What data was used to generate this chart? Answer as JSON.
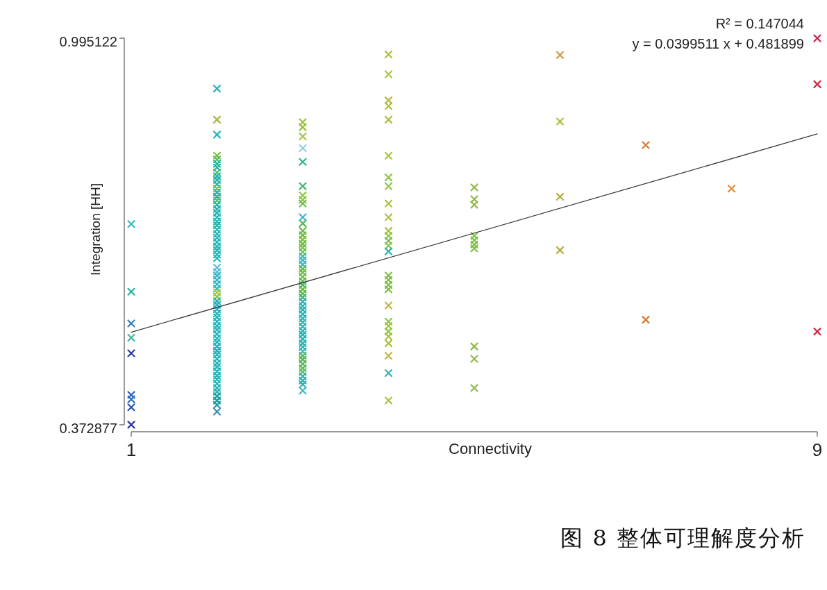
{
  "chart_data": {
    "type": "scatter",
    "xlabel": "Connectivity",
    "ylabel": "Integration [HH]",
    "annotations": [
      "R² = 0.147044",
      "y = 0.0399511 x + 0.481899",
      "图 8 整体可理解度分析"
    ],
    "xlim": [
      1,
      9
    ],
    "xticks": [
      1,
      9
    ],
    "ylim": [
      0.372877,
      0.995122
    ],
    "yticks": [
      0.372877,
      0.995122
    ],
    "marker": "cross",
    "series": [
      {
        "x": [
          1,
          1,
          1,
          1,
          1,
          1,
          1,
          1,
          1,
          2,
          2,
          2,
          2,
          2,
          2,
          2,
          2,
          2,
          2,
          2,
          2,
          2,
          2,
          2,
          2,
          2,
          2,
          2,
          2,
          2,
          2,
          2,
          2,
          2,
          2,
          2,
          2,
          2,
          2,
          2,
          2,
          2,
          2,
          2,
          2,
          2,
          2,
          2,
          2,
          2,
          2,
          2,
          2,
          2,
          2,
          2,
          2,
          2,
          2,
          2,
          2,
          2,
          2,
          2,
          2,
          2,
          2,
          2,
          2,
          2,
          2,
          2,
          2,
          3,
          3,
          3,
          3,
          3,
          3,
          3,
          3,
          3,
          3,
          3,
          3,
          3,
          3,
          3,
          3,
          3,
          3,
          3,
          3,
          3,
          3,
          3,
          3,
          3,
          3,
          3,
          3,
          3,
          3,
          3,
          3,
          3,
          3,
          3,
          3,
          3,
          3,
          3,
          3,
          3,
          3,
          3,
          3,
          3,
          3,
          3,
          3,
          3,
          3,
          4,
          4,
          4,
          4,
          4,
          4,
          4,
          4,
          4,
          4,
          4,
          4,
          4,
          4,
          4,
          4,
          4,
          4,
          4,
          4,
          4,
          4,
          4,
          4,
          4,
          4,
          4,
          4,
          5,
          5,
          5,
          5,
          5,
          5,
          5,
          5,
          5,
          5,
          6,
          6,
          6,
          6,
          7,
          7,
          8,
          9,
          9,
          9
        ],
        "values": [
          0.696,
          0.587,
          0.536,
          0.513,
          0.488,
          0.421,
          0.414,
          0.401,
          0.373,
          0.914,
          0.864,
          0.84,
          0.806,
          0.8,
          0.793,
          0.787,
          0.779,
          0.773,
          0.767,
          0.76,
          0.753,
          0.747,
          0.74,
          0.734,
          0.727,
          0.72,
          0.714,
          0.707,
          0.7,
          0.694,
          0.687,
          0.68,
          0.674,
          0.667,
          0.66,
          0.654,
          0.647,
          0.641,
          0.626,
          0.619,
          0.613,
          0.606,
          0.599,
          0.592,
          0.586,
          0.579,
          0.572,
          0.566,
          0.559,
          0.552,
          0.546,
          0.539,
          0.532,
          0.526,
          0.519,
          0.512,
          0.506,
          0.499,
          0.492,
          0.486,
          0.479,
          0.472,
          0.466,
          0.459,
          0.452,
          0.446,
          0.439,
          0.432,
          0.426,
          0.419,
          0.412,
          0.405,
          0.394,
          0.86,
          0.852,
          0.837,
          0.818,
          0.796,
          0.757,
          0.742,
          0.735,
          0.729,
          0.707,
          0.697,
          0.685,
          0.678,
          0.671,
          0.664,
          0.658,
          0.651,
          0.644,
          0.638,
          0.631,
          0.624,
          0.618,
          0.611,
          0.604,
          0.598,
          0.591,
          0.584,
          0.578,
          0.571,
          0.564,
          0.558,
          0.551,
          0.544,
          0.538,
          0.531,
          0.524,
          0.518,
          0.511,
          0.504,
          0.498,
          0.491,
          0.484,
          0.478,
          0.471,
          0.464,
          0.458,
          0.451,
          0.444,
          0.438,
          0.428,
          0.969,
          0.937,
          0.895,
          0.886,
          0.864,
          0.806,
          0.771,
          0.757,
          0.729,
          0.707,
          0.685,
          0.677,
          0.669,
          0.661,
          0.652,
          0.613,
          0.606,
          0.598,
          0.591,
          0.565,
          0.539,
          0.532,
          0.523,
          0.515,
          0.504,
          0.484,
          0.456,
          0.412,
          0.755,
          0.736,
          0.727,
          0.677,
          0.67,
          0.663,
          0.657,
          0.499,
          0.479,
          0.432,
          0.968,
          0.861,
          0.74,
          0.654,
          0.823,
          0.542,
          0.753,
          0.995,
          0.921,
          0.523
        ],
        "colors": [
          "#35b8c8",
          "#24b5a8",
          "#3a7fb5",
          "#3cb595",
          "#2d3fa8",
          "#2a5fc0",
          "#2a6dc0",
          "#2a55b8",
          "#2a3aa5",
          "#2ab5b5",
          "#a8b84a",
          "#2ab5b5",
          "#7cc242",
          "#5cbf6a",
          "#22b5a8",
          "#22b5a8",
          "#5cbf6a",
          "#22b5a8",
          "#22b5a8",
          "#2ab5b5",
          "#7cc242",
          "#22b5a8",
          "#22b5a8",
          "#5cbf6a",
          "#22b5a8",
          "#22b5a8",
          "#29b8b8",
          "#29b8b8",
          "#29b8b8",
          "#22b5a8",
          "#29b8b8",
          "#29b8b8",
          "#29b8b8",
          "#29b8b8",
          "#29b8b8",
          "#29b8b8",
          "#29b8b8",
          "#29b8b8",
          "#5bbfd8",
          "#5bbfd8",
          "#3cb8c8",
          "#3cb8c8",
          "#3cb8c8",
          "#3cb8c8",
          "#b5c930",
          "#8cc63f",
          "#27b4bf",
          "#27b4bf",
          "#27b4bf",
          "#27b4bf",
          "#27b4bf",
          "#27b4bf",
          "#27b4bf",
          "#27b4bf",
          "#27b4bf",
          "#27b4bf",
          "#27b4bf",
          "#27b4bf",
          "#27b4bf",
          "#27b4bf",
          "#27b4bf",
          "#27b4bf",
          "#27b4bf",
          "#27b4bf",
          "#27b4bf",
          "#27b4bf",
          "#27b4bf",
          "#27b4bf",
          "#27b4bf",
          "#1a9f9f",
          "#1a9f9f",
          "#1a9f9f",
          "#3a8fb5",
          "#9cc23a",
          "#9cc23a",
          "#a3c43c",
          "#8fd0e6",
          "#2fb58c",
          "#3fb56a",
          "#8cc63f",
          "#8cc63f",
          "#6fbf4a",
          "#3ab8c8",
          "#5cb85c",
          "#6fbf4a",
          "#6fbf4a",
          "#8cc63f",
          "#6fbf4a",
          "#6fbf4a",
          "#6fbf4a",
          "#3ab8a8",
          "#3ab8c8",
          "#3ab8c8",
          "#68bd45",
          "#68bd45",
          "#68bd45",
          "#68bd45",
          "#3cb878",
          "#68bd45",
          "#68bd45",
          "#3cb878",
          "#2bb3b3",
          "#2bb3b3",
          "#2bb3b3",
          "#2bb3b3",
          "#2bb3b3",
          "#2bb3b3",
          "#2bb3b3",
          "#2bb3b3",
          "#2bb3b3",
          "#2bb3b3",
          "#2bb3b3",
          "#2bb3b3",
          "#2bb3b3",
          "#5cb85c",
          "#5cb85c",
          "#5cb85c",
          "#5cb85c",
          "#5cb85c",
          "#2bb3b3",
          "#2bb3b3",
          "#2bb3b3",
          "#3cb8c8",
          "#a6c43a",
          "#a6c43a",
          "#c2b640",
          "#a6c43a",
          "#a6c43a",
          "#a6c43a",
          "#8cc63f",
          "#8cc63f",
          "#a6c43a",
          "#a6c43a",
          "#a6c43a",
          "#8cc63f",
          "#6fbf4a",
          "#8cc63f",
          "#2fb5b0",
          "#7dbd3f",
          "#7dbd3f",
          "#7dbd3f",
          "#7dbd3f",
          "#c2b640",
          "#8cc63f",
          "#a6c43a",
          "#8cc63f",
          "#a6c43a",
          "#a6c43a",
          "#c2b640",
          "#2fb5b0",
          "#a6c43a",
          "#8fb84a",
          "#8fb84a",
          "#8fb84a",
          "#7cc242",
          "#7cc242",
          "#7cc242",
          "#7cc242",
          "#8fb84a",
          "#8fb84a",
          "#8fb84a",
          "#d09a3a",
          "#b0c03a",
          "#b5b540",
          "#b5b040",
          "#d9772e",
          "#d47a35",
          "#e08a30",
          "#cc2a4a",
          "#cc2a4a",
          "#cc2a4a"
        ]
      },
      {
        "type": "line",
        "x": [
          1,
          9
        ],
        "values": [
          0.522,
          0.841
        ],
        "color": "#3c3c3c",
        "line_style": "solid",
        "marker": "none"
      }
    ]
  }
}
